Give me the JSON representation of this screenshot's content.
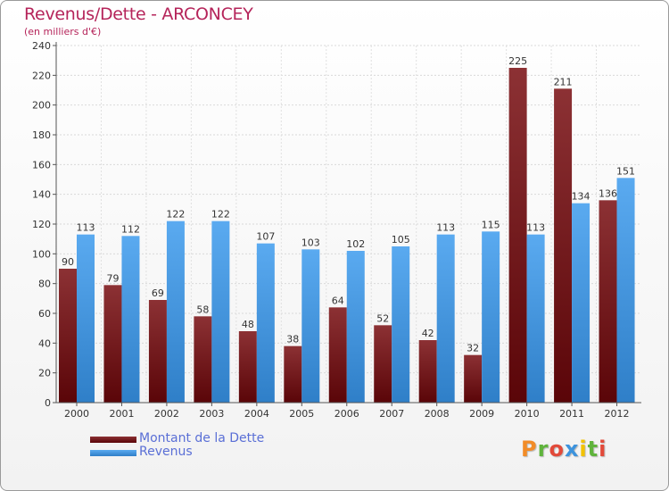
{
  "chart_data": {
    "type": "bar",
    "title": "Revenus/Dette - ARCONCEY",
    "subtitle": "(en milliers d'€)",
    "xlabel": "",
    "ylabel": "",
    "categories": [
      "2000",
      "2001",
      "2002",
      "2003",
      "2004",
      "2005",
      "2006",
      "2007",
      "2008",
      "2009",
      "2010",
      "2011",
      "2012"
    ],
    "series": [
      {
        "name": "Montant de la Dette",
        "color": "#6b0f12",
        "values": [
          90,
          79,
          69,
          58,
          48,
          38,
          64,
          52,
          42,
          32,
          225,
          211,
          136
        ]
      },
      {
        "name": "Revenus",
        "color": "#3d93dd",
        "values": [
          113,
          112,
          122,
          122,
          107,
          103,
          102,
          105,
          113,
          115,
          113,
          134,
          151
        ]
      }
    ],
    "ylim": [
      0,
      240
    ],
    "yticks": [
      0,
      20,
      40,
      60,
      80,
      100,
      120,
      140,
      160,
      180,
      200,
      220,
      240
    ],
    "grid": true,
    "legend": "bottom-left"
  },
  "logo": {
    "text": "Proxiti",
    "colors": [
      "#f28c28",
      "#5fb43c",
      "#e24a3a",
      "#3d93dd",
      "#f2c200",
      "#5fb43c",
      "#e24a3a"
    ]
  }
}
